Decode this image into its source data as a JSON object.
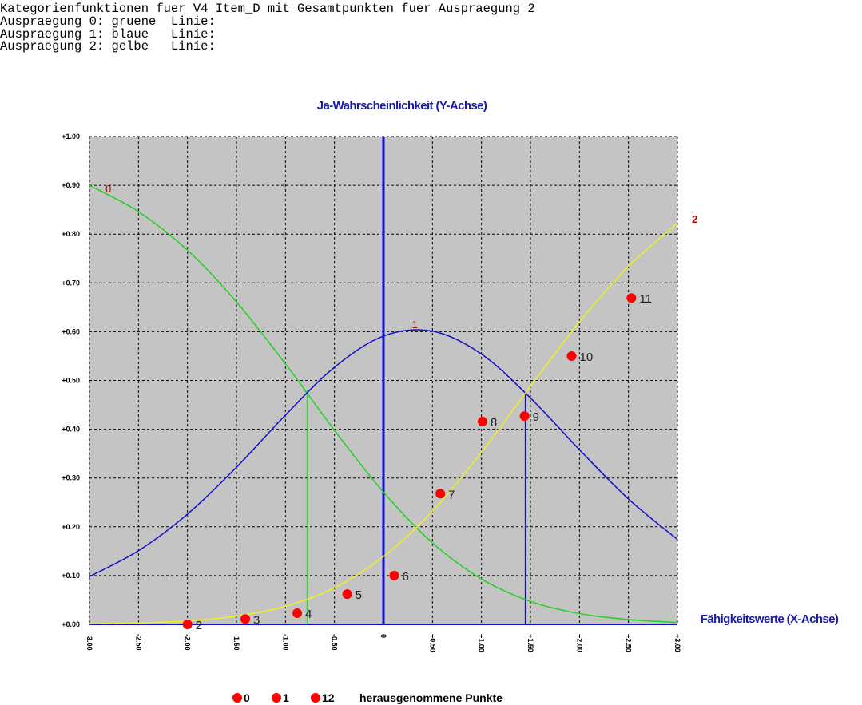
{
  "header_lines": [
    "Kategorienfunktionen fuer V4 Item_D mit Gesamtpunkten fuer Auspraegung 2",
    "Auspraegung 0: gruene  Linie:",
    "Auspraegung 1: blaue   Linie:",
    "Auspraegung 2: gelbe   Linie:"
  ],
  "chart_data": {
    "type": "line",
    "y_axis_label": "Ja-Wahrscheinlichkeit (Y-Achse)",
    "x_axis_label": "Fähigkeitswerte (X-Achse)",
    "xlim": [
      -3,
      3
    ],
    "ylim": [
      0,
      1
    ],
    "xticks": [
      {
        "value": -3,
        "label": "-3.00"
      },
      {
        "value": -2.5,
        "label": "-2.50"
      },
      {
        "value": -2,
        "label": "-2.00"
      },
      {
        "value": -1.5,
        "label": "-1.50"
      },
      {
        "value": -1,
        "label": "-1.00"
      },
      {
        "value": -0.5,
        "label": "-0.50"
      },
      0,
      {
        "value": 0.5,
        "label": "+0.50"
      },
      {
        "value": 1,
        "label": "+1.00"
      },
      {
        "value": 1.5,
        "label": "+1.50"
      },
      {
        "value": 2,
        "label": "+2.00"
      },
      {
        "value": 2.5,
        "label": "+2.50"
      },
      {
        "value": 3,
        "label": "+3.00"
      }
    ],
    "yticks": [
      {
        "value": 0,
        "label": "+0.00"
      },
      {
        "value": 0.1,
        "label": "+0.10"
      },
      {
        "value": 0.2,
        "label": "+0.20"
      },
      {
        "value": 0.3,
        "label": "+0.30"
      },
      {
        "value": 0.4,
        "label": "+0.40"
      },
      {
        "value": 0.5,
        "label": "+0.50"
      },
      {
        "value": 0.6,
        "label": "+0.60"
      },
      {
        "value": 0.7,
        "label": "+0.70"
      },
      {
        "value": 0.8,
        "label": "+0.80"
      },
      {
        "value": 0.9,
        "label": "+0.90"
      },
      {
        "value": 1,
        "label": "+1.00"
      }
    ],
    "grid": true,
    "x": [
      -3,
      -2.5,
      -2,
      -1.5,
      -1,
      -0.5,
      0,
      0.5,
      1,
      1.5,
      2,
      2.5,
      3
    ],
    "series": [
      {
        "name": "0",
        "color": "#22d022",
        "values": [
          0.9,
          0.846,
          0.767,
          0.661,
          0.534,
          0.398,
          0.271,
          0.167,
          0.093,
          0.047,
          0.022,
          0.01,
          0.004
        ]
      },
      {
        "name": "1",
        "color": "#1010c8",
        "values": [
          0.098,
          0.151,
          0.226,
          0.322,
          0.429,
          0.527,
          0.591,
          0.601,
          0.554,
          0.464,
          0.358,
          0.257,
          0.174
        ]
      },
      {
        "name": "2",
        "color": "#f0f020",
        "values": [
          0.001,
          0.003,
          0.007,
          0.017,
          0.037,
          0.075,
          0.139,
          0.232,
          0.353,
          0.488,
          0.62,
          0.734,
          0.822
        ]
      }
    ],
    "points": {
      "color": "#ff0000",
      "labels": [
        2,
        3,
        4,
        5,
        6,
        7,
        8,
        9,
        10,
        11
      ],
      "x": [
        -2.0,
        -1.41,
        -0.88,
        -0.37,
        0.11,
        0.58,
        1.01,
        1.44,
        1.92,
        2.53
      ],
      "y": [
        0.0,
        0.011,
        0.023,
        0.062,
        0.1,
        0.268,
        0.416,
        0.427,
        0.55,
        0.669
      ]
    },
    "drop_lines": [
      {
        "x": -0.78,
        "y": 0.48,
        "color": "#22d022"
      },
      {
        "x": 1.45,
        "y": 0.475,
        "color": "#1010c8"
      }
    ],
    "excluded_points": [
      0,
      1,
      12
    ],
    "excluded_label": "herausgenommene Punkte"
  }
}
